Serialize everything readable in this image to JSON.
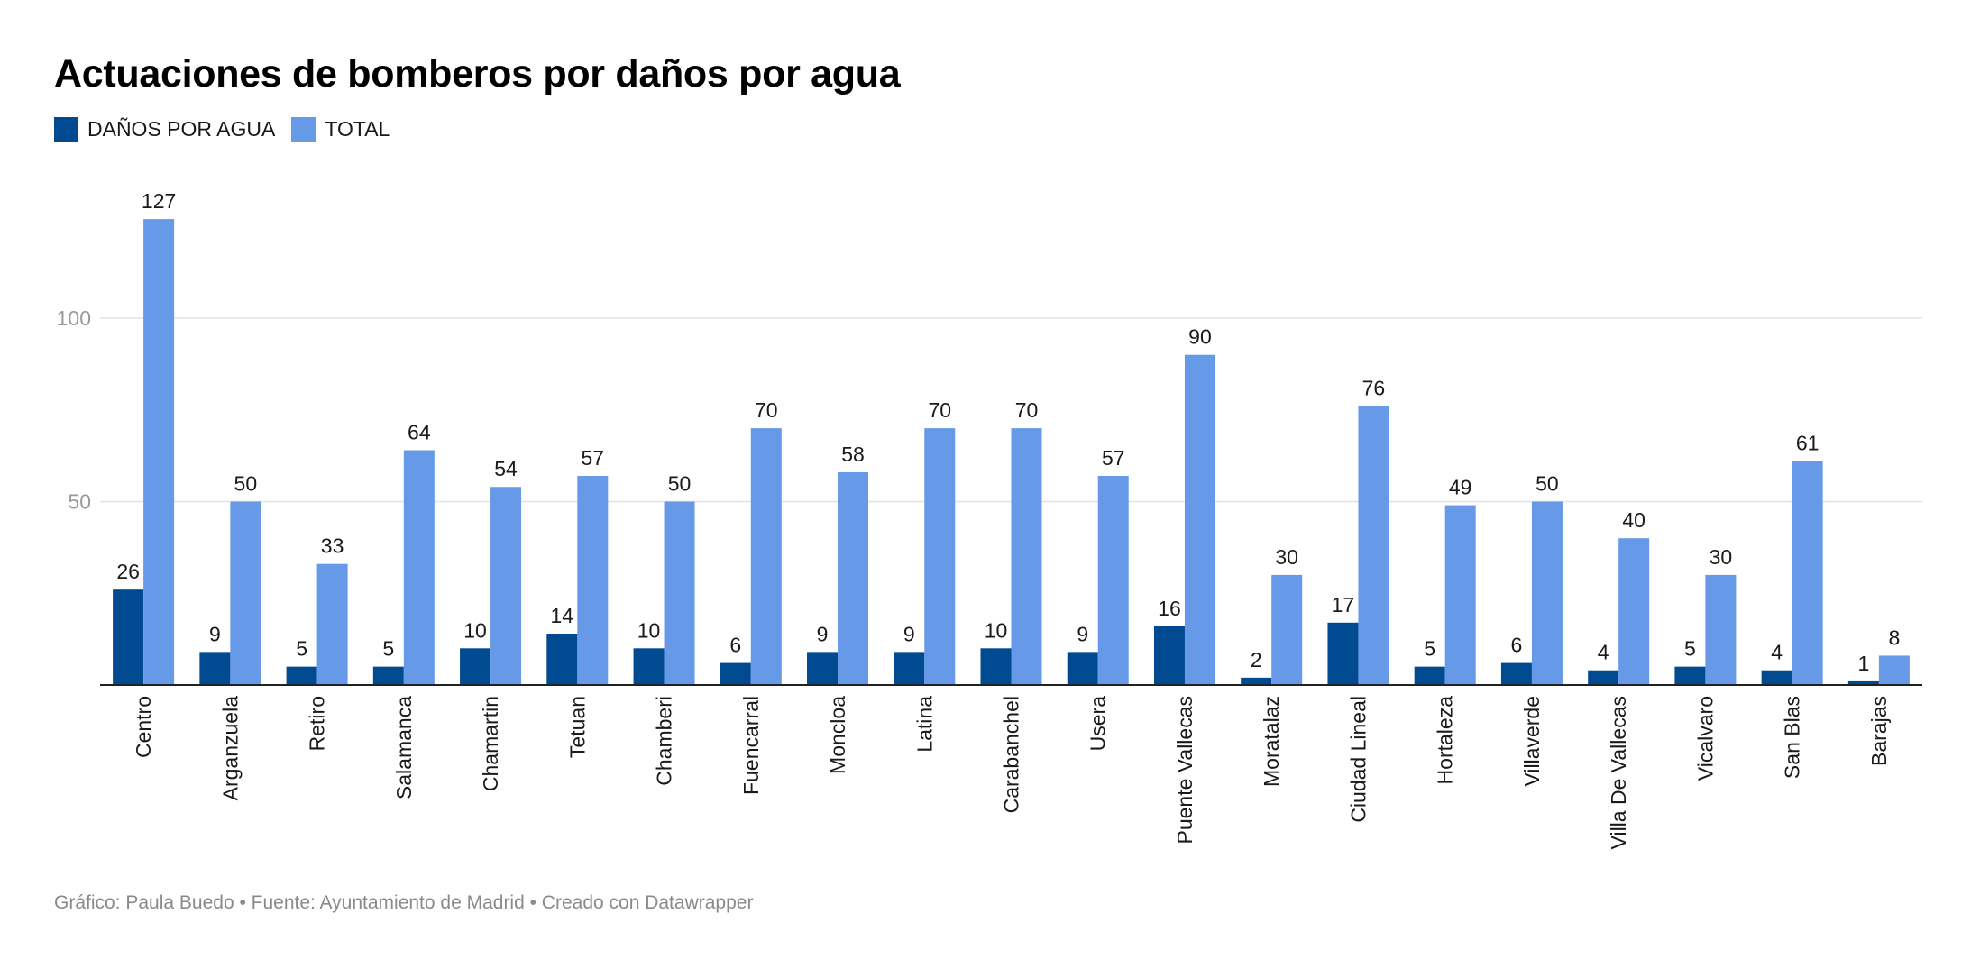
{
  "chart_data": {
    "type": "bar",
    "title": "Actuaciones de bomberos por daños por agua",
    "xlabel": "",
    "ylabel": "",
    "ylim": [
      0,
      127
    ],
    "yticks": [
      50,
      100
    ],
    "grid": true,
    "legend_position": "top-left",
    "categories": [
      "Centro",
      "Arganzuela",
      "Retiro",
      "Salamanca",
      "Chamartin",
      "Tetuan",
      "Chamberi",
      "Fuencarral",
      "Moncloa",
      "Latina",
      "Carabanchel",
      "Usera",
      "Puente Vallecas",
      "Moratalaz",
      "Ciudad Lineal",
      "Hortaleza",
      "Villaverde",
      "Villa De Vallecas",
      "Vicalvaro",
      "San Blas",
      "Barajas"
    ],
    "series": [
      {
        "name": "DAÑOS POR AGUA",
        "color": "#004a92",
        "values": [
          26,
          9,
          5,
          5,
          10,
          14,
          10,
          6,
          9,
          9,
          10,
          9,
          16,
          2,
          17,
          5,
          6,
          4,
          5,
          4,
          1
        ]
      },
      {
        "name": "TOTAL",
        "color": "#6699e8",
        "values": [
          127,
          50,
          33,
          64,
          54,
          57,
          50,
          70,
          58,
          70,
          70,
          57,
          90,
          30,
          76,
          49,
          50,
          40,
          30,
          61,
          8
        ]
      }
    ]
  },
  "footer": "Gráfico: Paula Buedo • Fuente: Ayuntamiento de Madrid • Creado con Datawrapper"
}
